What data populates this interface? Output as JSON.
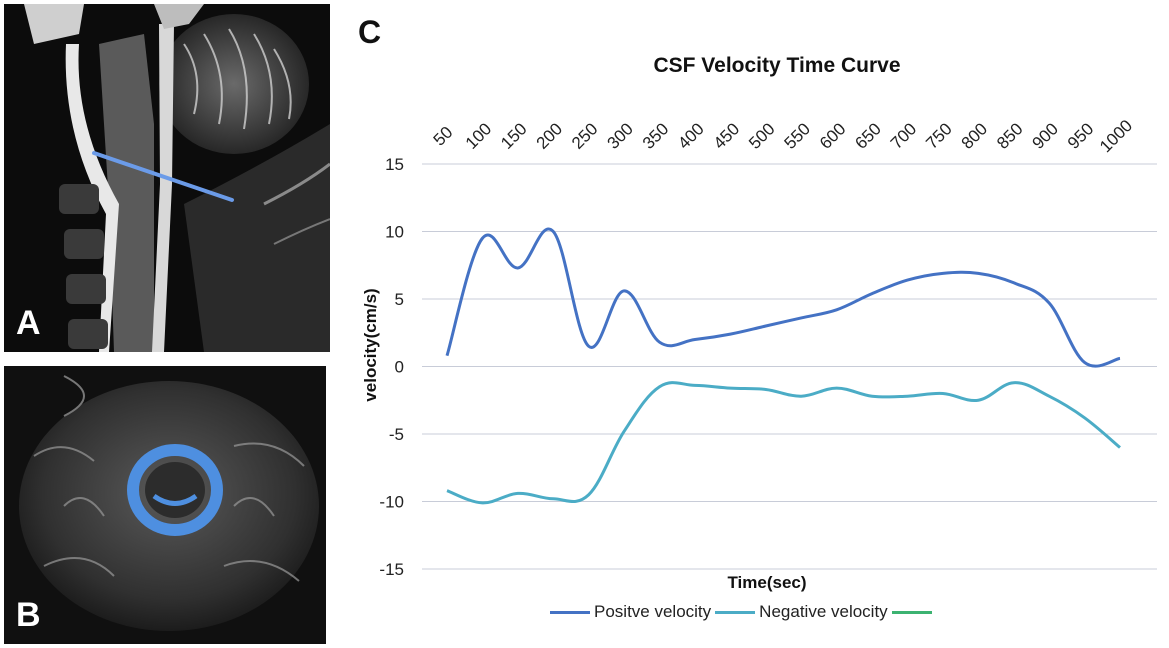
{
  "panels": {
    "a_label": "A",
    "b_label": "B",
    "c_label": "C"
  },
  "colors": {
    "positive": "#4472C4",
    "negative": "#4BACC6",
    "third": "#3CB371",
    "grid": "#C8CCD8",
    "marker": "#6B9BE8"
  },
  "legend": {
    "positive_label": "Positve velocity",
    "negative_label": "Negative velocity",
    "third_label": ""
  },
  "chart_data": {
    "type": "line",
    "title": "CSF Velocity Time Curve",
    "xlabel": "Time(sec)",
    "ylabel": "velocity(cm/s)",
    "x_axis_position": "top",
    "categories": [
      "50",
      "100",
      "150",
      "200",
      "250",
      "300",
      "350",
      "400",
      "450",
      "500",
      "550",
      "600",
      "650",
      "700",
      "750",
      "800",
      "850",
      "900",
      "950",
      "1000"
    ],
    "ylim": [
      -15,
      15
    ],
    "yticks": [
      15,
      10,
      5,
      0,
      -5,
      -10,
      -15
    ],
    "grid": true,
    "series": [
      {
        "name": "Positve velocity",
        "values": [
          0.8,
          9.5,
          7.3,
          10.0,
          1.5,
          5.6,
          1.8,
          2.0,
          2.4,
          3.0,
          3.6,
          4.2,
          5.4,
          6.4,
          6.9,
          6.9,
          6.2,
          4.7,
          0.3,
          0.6
        ]
      },
      {
        "name": "Negative velocity",
        "values": [
          -9.2,
          -10.1,
          -9.4,
          -9.8,
          -9.5,
          -4.8,
          -1.5,
          -1.4,
          -1.6,
          -1.7,
          -2.2,
          -1.6,
          -2.2,
          -2.2,
          -2.0,
          -2.5,
          -1.2,
          -2.2,
          -3.8,
          -6.0
        ]
      }
    ]
  }
}
